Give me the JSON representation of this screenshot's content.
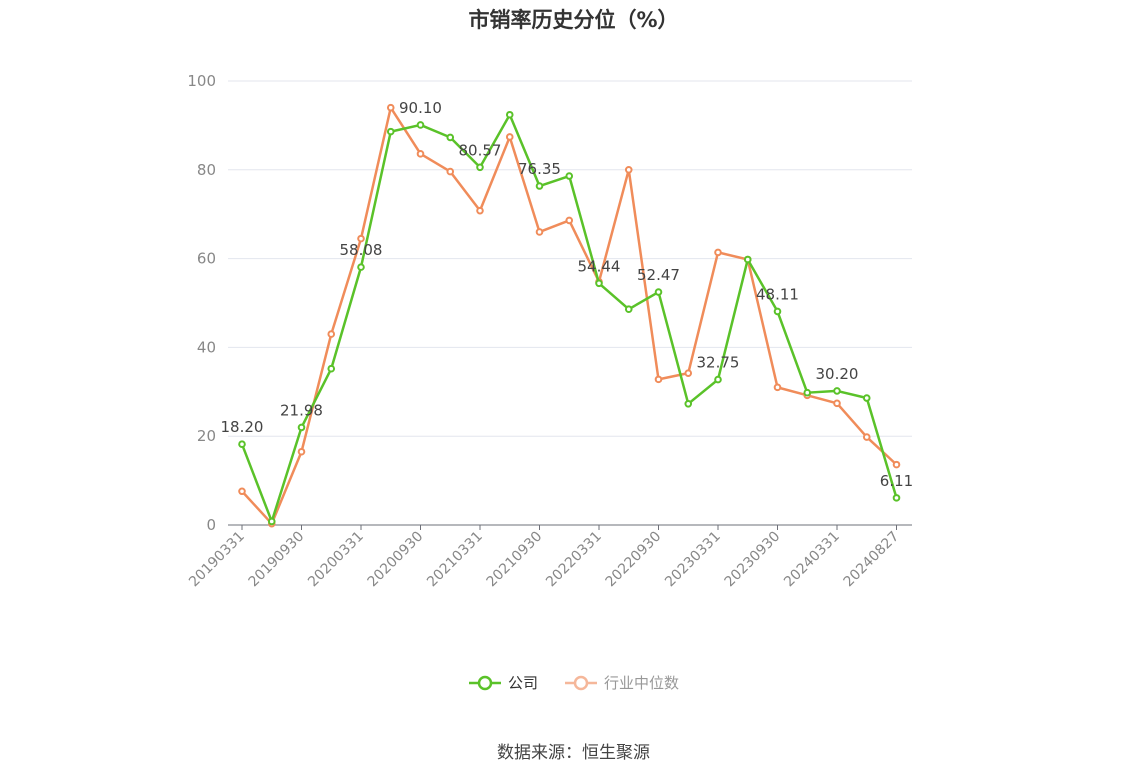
{
  "title": "市销率历史分位（%）",
  "source": "数据来源：恒生聚源",
  "chart_data": {
    "type": "line",
    "x_tick_labels": [
      "20190331",
      "20190930",
      "20200331",
      "20200930",
      "20210331",
      "20210930",
      "20220331",
      "20220930",
      "20230331",
      "20230930",
      "20240331",
      "20240827"
    ],
    "ylim": [
      0,
      100
    ],
    "y_ticks": [
      0,
      20,
      40,
      60,
      80,
      100
    ],
    "grid": true,
    "legend_position": "bottom",
    "series": [
      {
        "name": "公司",
        "color": "#5ac229",
        "values": [
          18.2,
          0.8,
          21.98,
          35.2,
          58.08,
          88.6,
          90.1,
          87.3,
          80.57,
          92.4,
          76.35,
          78.6,
          54.44,
          48.6,
          52.47,
          27.3,
          32.75,
          59.8,
          48.11,
          29.8,
          30.2,
          28.6,
          6.11
        ],
        "labels": {
          "0": "18.20",
          "2": "21.98",
          "4": "58.08",
          "6": "90.10",
          "8": "80.57",
          "10": "76.35",
          "12": "54.44",
          "14": "52.47",
          "16": "32.75",
          "18": "48.11",
          "20": "30.20",
          "22": "6.11"
        }
      },
      {
        "name": "行业中位数",
        "color": "#f08c5a",
        "values": [
          7.6,
          0.3,
          16.5,
          43.0,
          64.5,
          94.0,
          83.6,
          79.6,
          70.8,
          87.4,
          66.0,
          68.6,
          54.8,
          80.0,
          32.8,
          34.2,
          61.4,
          59.8,
          31.0,
          29.2,
          27.4,
          19.8,
          13.6
        ]
      }
    ]
  }
}
